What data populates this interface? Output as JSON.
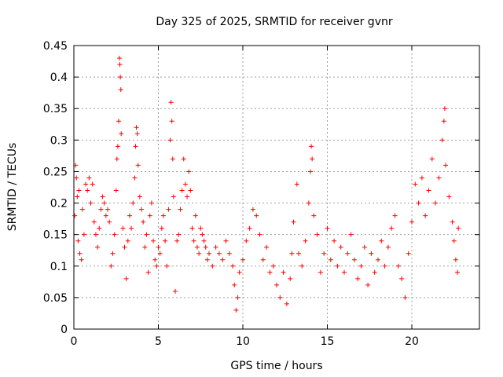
{
  "chart_data": {
    "type": "scatter",
    "title": "Day 325 of 2025, SRMTID for receiver gvnr",
    "xlabel": "GPS time / hours",
    "ylabel": "SRMTID / TECUs",
    "xlim": [
      0,
      24
    ],
    "ylim": [
      0,
      0.45
    ],
    "xticks": [
      0,
      5,
      10,
      15,
      20
    ],
    "xtick_labels": [
      "0",
      "5",
      "10",
      "15",
      "20"
    ],
    "yticks": [
      0,
      0.05,
      0.1,
      0.15,
      0.2,
      0.25,
      0.3,
      0.35,
      0.4,
      0.45
    ],
    "ytick_labels": [
      "0",
      "0.05",
      "0.1",
      "0.15",
      "0.2",
      "0.25",
      "0.3",
      "0.35",
      "0.4",
      "0.45"
    ],
    "grid": true,
    "marker": "+",
    "color": "#ff0000",
    "series": [
      {
        "name": "SRMTID",
        "points": [
          [
            0.05,
            0.18
          ],
          [
            0.1,
            0.26
          ],
          [
            0.15,
            0.24
          ],
          [
            0.2,
            0.21
          ],
          [
            0.25,
            0.14
          ],
          [
            0.3,
            0.22
          ],
          [
            0.35,
            0.12
          ],
          [
            0.45,
            0.11
          ],
          [
            0.5,
            0.19
          ],
          [
            0.6,
            0.15
          ],
          [
            0.7,
            0.23
          ],
          [
            0.8,
            0.22
          ],
          [
            0.9,
            0.24
          ],
          [
            1.0,
            0.2
          ],
          [
            1.1,
            0.23
          ],
          [
            1.2,
            0.17
          ],
          [
            1.3,
            0.15
          ],
          [
            1.4,
            0.13
          ],
          [
            1.5,
            0.16
          ],
          [
            1.6,
            0.19
          ],
          [
            1.7,
            0.21
          ],
          [
            1.8,
            0.2
          ],
          [
            1.9,
            0.18
          ],
          [
            2.0,
            0.19
          ],
          [
            2.1,
            0.17
          ],
          [
            2.2,
            0.1
          ],
          [
            2.3,
            0.12
          ],
          [
            2.4,
            0.15
          ],
          [
            2.5,
            0.22
          ],
          [
            2.55,
            0.27
          ],
          [
            2.6,
            0.29
          ],
          [
            2.65,
            0.33
          ],
          [
            2.7,
            0.43
          ],
          [
            2.72,
            0.42
          ],
          [
            2.75,
            0.4
          ],
          [
            2.78,
            0.38
          ],
          [
            2.8,
            0.31
          ],
          [
            2.9,
            0.16
          ],
          [
            3.0,
            0.13
          ],
          [
            3.1,
            0.08
          ],
          [
            3.2,
            0.14
          ],
          [
            3.3,
            0.18
          ],
          [
            3.4,
            0.16
          ],
          [
            3.5,
            0.2
          ],
          [
            3.6,
            0.24
          ],
          [
            3.65,
            0.29
          ],
          [
            3.7,
            0.32
          ],
          [
            3.75,
            0.31
          ],
          [
            3.8,
            0.26
          ],
          [
            3.9,
            0.21
          ],
          [
            4.0,
            0.19
          ],
          [
            4.1,
            0.17
          ],
          [
            4.2,
            0.13
          ],
          [
            4.3,
            0.15
          ],
          [
            4.4,
            0.09
          ],
          [
            4.5,
            0.18
          ],
          [
            4.6,
            0.2
          ],
          [
            4.7,
            0.14
          ],
          [
            4.8,
            0.11
          ],
          [
            4.9,
            0.1
          ],
          [
            5.0,
            0.13
          ],
          [
            5.1,
            0.12
          ],
          [
            5.2,
            0.16
          ],
          [
            5.3,
            0.18
          ],
          [
            5.4,
            0.14
          ],
          [
            5.5,
            0.1
          ],
          [
            5.6,
            0.19
          ],
          [
            5.7,
            0.3
          ],
          [
            5.75,
            0.36
          ],
          [
            5.8,
            0.33
          ],
          [
            5.85,
            0.27
          ],
          [
            5.9,
            0.21
          ],
          [
            6.0,
            0.06
          ],
          [
            6.1,
            0.14
          ],
          [
            6.2,
            0.15
          ],
          [
            6.3,
            0.19
          ],
          [
            6.4,
            0.22
          ],
          [
            6.5,
            0.27
          ],
          [
            6.6,
            0.23
          ],
          [
            6.7,
            0.21
          ],
          [
            6.8,
            0.25
          ],
          [
            6.9,
            0.22
          ],
          [
            7.0,
            0.16
          ],
          [
            7.1,
            0.14
          ],
          [
            7.2,
            0.18
          ],
          [
            7.3,
            0.13
          ],
          [
            7.4,
            0.12
          ],
          [
            7.5,
            0.16
          ],
          [
            7.6,
            0.15
          ],
          [
            7.7,
            0.14
          ],
          [
            7.8,
            0.13
          ],
          [
            7.9,
            0.11
          ],
          [
            8.0,
            0.12
          ],
          [
            8.2,
            0.1
          ],
          [
            8.4,
            0.13
          ],
          [
            8.6,
            0.12
          ],
          [
            8.8,
            0.11
          ],
          [
            9.0,
            0.14
          ],
          [
            9.2,
            0.12
          ],
          [
            9.4,
            0.1
          ],
          [
            9.5,
            0.07
          ],
          [
            9.6,
            0.03
          ],
          [
            9.7,
            0.05
          ],
          [
            9.8,
            0.09
          ],
          [
            10.0,
            0.11
          ],
          [
            10.2,
            0.14
          ],
          [
            10.4,
            0.16
          ],
          [
            10.6,
            0.19
          ],
          [
            10.8,
            0.18
          ],
          [
            11.0,
            0.15
          ],
          [
            11.2,
            0.11
          ],
          [
            11.4,
            0.13
          ],
          [
            11.6,
            0.09
          ],
          [
            11.8,
            0.1
          ],
          [
            12.0,
            0.07
          ],
          [
            12.2,
            0.05
          ],
          [
            12.4,
            0.09
          ],
          [
            12.6,
            0.04
          ],
          [
            12.8,
            0.08
          ],
          [
            12.9,
            0.12
          ],
          [
            13.0,
            0.17
          ],
          [
            13.2,
            0.23
          ],
          [
            13.3,
            0.12
          ],
          [
            13.5,
            0.1
          ],
          [
            13.7,
            0.14
          ],
          [
            13.9,
            0.2
          ],
          [
            14.0,
            0.25
          ],
          [
            14.05,
            0.29
          ],
          [
            14.1,
            0.27
          ],
          [
            14.2,
            0.18
          ],
          [
            14.4,
            0.15
          ],
          [
            14.6,
            0.09
          ],
          [
            14.8,
            0.12
          ],
          [
            15.0,
            0.16
          ],
          [
            15.2,
            0.11
          ],
          [
            15.4,
            0.14
          ],
          [
            15.6,
            0.1
          ],
          [
            15.8,
            0.13
          ],
          [
            16.0,
            0.09
          ],
          [
            16.2,
            0.12
          ],
          [
            16.4,
            0.15
          ],
          [
            16.6,
            0.11
          ],
          [
            16.8,
            0.08
          ],
          [
            17.0,
            0.1
          ],
          [
            17.2,
            0.13
          ],
          [
            17.4,
            0.07
          ],
          [
            17.6,
            0.12
          ],
          [
            17.8,
            0.09
          ],
          [
            18.0,
            0.11
          ],
          [
            18.2,
            0.14
          ],
          [
            18.4,
            0.1
          ],
          [
            18.6,
            0.13
          ],
          [
            18.8,
            0.16
          ],
          [
            19.0,
            0.18
          ],
          [
            19.2,
            0.1
          ],
          [
            19.4,
            0.08
          ],
          [
            19.6,
            0.05
          ],
          [
            19.8,
            0.12
          ],
          [
            20.0,
            0.17
          ],
          [
            20.2,
            0.23
          ],
          [
            20.4,
            0.2
          ],
          [
            20.6,
            0.24
          ],
          [
            20.8,
            0.18
          ],
          [
            21.0,
            0.22
          ],
          [
            21.2,
            0.27
          ],
          [
            21.4,
            0.2
          ],
          [
            21.6,
            0.24
          ],
          [
            21.8,
            0.3
          ],
          [
            21.9,
            0.33
          ],
          [
            21.95,
            0.35
          ],
          [
            22.0,
            0.26
          ],
          [
            22.2,
            0.21
          ],
          [
            22.4,
            0.17
          ],
          [
            22.5,
            0.14
          ],
          [
            22.6,
            0.11
          ],
          [
            22.7,
            0.09
          ],
          [
            22.75,
            0.16
          ]
        ]
      }
    ]
  }
}
